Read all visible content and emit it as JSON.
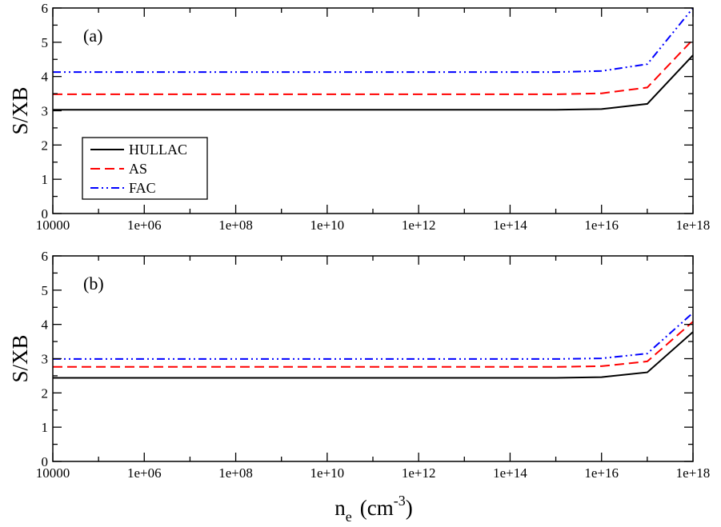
{
  "chart_data": [
    {
      "type": "line",
      "panel_label": "(a)",
      "ylabel": "S/XB",
      "xlabel": "",
      "xscale": "log",
      "xlim": [
        10000,
        1e+18
      ],
      "ylim": [
        0,
        6
      ],
      "xtick_labels": [
        "10000",
        "1e+06",
        "1e+08",
        "1e+10",
        "1e+12",
        "1e+14",
        "1e+16",
        "1e+18"
      ],
      "ytick_labels": [
        "0",
        "1",
        "2",
        "3",
        "4",
        "5",
        "6"
      ],
      "legend_position": "lower-left",
      "series": [
        {
          "name": "HULLAC",
          "color": "#000000",
          "dash": "solid",
          "x": [
            10000,
            1000000.0,
            100000000.0,
            10000000000.0,
            1000000000000.0,
            100000000000000.0,
            1000000000000000.0,
            1e+16,
            1e+17,
            1e+18
          ],
          "y": [
            3.03,
            3.03,
            3.03,
            3.03,
            3.03,
            3.03,
            3.03,
            3.05,
            3.2,
            4.62
          ]
        },
        {
          "name": "AS",
          "color": "#ff0000",
          "dash": "dashed",
          "x": [
            10000,
            1000000.0,
            100000000.0,
            10000000000.0,
            1000000000000.0,
            100000000000000.0,
            1000000000000000.0,
            1e+16,
            1e+17,
            1e+18
          ],
          "y": [
            3.48,
            3.48,
            3.48,
            3.48,
            3.48,
            3.48,
            3.48,
            3.51,
            3.68,
            5.08
          ]
        },
        {
          "name": "FAC",
          "color": "#0000ff",
          "dash": "dashdotdot",
          "x": [
            10000,
            1000000.0,
            100000000.0,
            10000000000.0,
            1000000000000.0,
            100000000000000.0,
            1000000000000000.0,
            1e+16,
            1e+17,
            1e+18
          ],
          "y": [
            4.13,
            4.13,
            4.13,
            4.13,
            4.13,
            4.13,
            4.13,
            4.16,
            4.36,
            6.0
          ]
        }
      ]
    },
    {
      "type": "line",
      "panel_label": "(b)",
      "ylabel": "S/XB",
      "xlabel": "n_e (cm^-3)",
      "xscale": "log",
      "xlim": [
        10000,
        1e+18
      ],
      "ylim": [
        0,
        6
      ],
      "xtick_labels": [
        "10000",
        "1e+06",
        "1e+08",
        "1e+10",
        "1e+12",
        "1e+14",
        "1e+16",
        "1e+18"
      ],
      "ytick_labels": [
        "0",
        "1",
        "2",
        "3",
        "4",
        "5",
        "6"
      ],
      "series": [
        {
          "name": "HULLAC",
          "color": "#000000",
          "dash": "solid",
          "x": [
            10000,
            1000000.0,
            100000000.0,
            10000000000.0,
            1000000000000.0,
            100000000000000.0,
            1000000000000000.0,
            1e+16,
            1e+17,
            1e+18
          ],
          "y": [
            2.44,
            2.44,
            2.44,
            2.44,
            2.44,
            2.44,
            2.44,
            2.46,
            2.6,
            3.78
          ]
        },
        {
          "name": "AS",
          "color": "#ff0000",
          "dash": "dashed",
          "x": [
            10000,
            1000000.0,
            100000000.0,
            10000000000.0,
            1000000000000.0,
            100000000000000.0,
            1000000000000000.0,
            1e+16,
            1e+17,
            1e+18
          ],
          "y": [
            2.76,
            2.76,
            2.76,
            2.76,
            2.76,
            2.76,
            2.76,
            2.78,
            2.92,
            4.08
          ]
        },
        {
          "name": "FAC",
          "color": "#0000ff",
          "dash": "dashdotdot",
          "x": [
            10000,
            1000000.0,
            100000000.0,
            10000000000.0,
            1000000000000.0,
            100000000000000.0,
            1000000000000000.0,
            1e+16,
            1e+17,
            1e+18
          ],
          "y": [
            2.99,
            2.99,
            2.99,
            2.99,
            2.99,
            2.99,
            2.99,
            3.01,
            3.15,
            4.34
          ]
        }
      ]
    }
  ],
  "xaxis_title": {
    "main": "n",
    "subscript": "e",
    "unit_open": "(cm",
    "superscript": "-3",
    "unit_close": ")"
  }
}
